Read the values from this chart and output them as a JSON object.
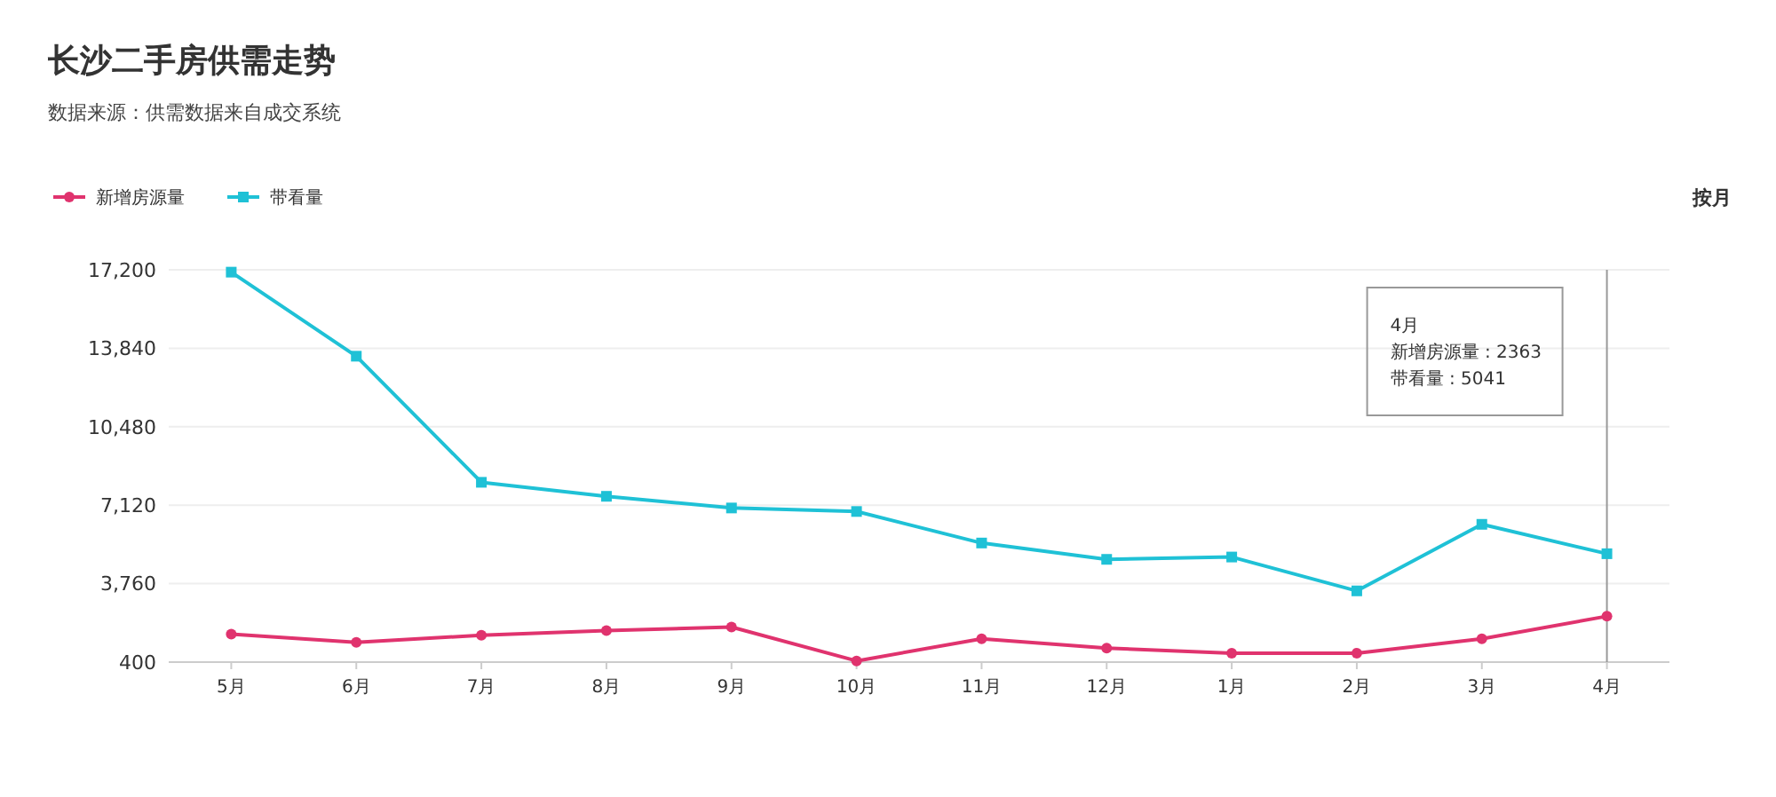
{
  "chart_data": {
    "type": "line",
    "title": "长沙二手房供需走势",
    "subtitle": "数据来源：供需数据来自成交系统",
    "categories": [
      "5月",
      "6月",
      "7月",
      "8月",
      "9月",
      "10月",
      "11月",
      "12月",
      "1月",
      "2月",
      "3月",
      "4月"
    ],
    "series": [
      {
        "name": "新增房源量",
        "color": "#e0336e",
        "marker": "circle",
        "values": [
          1600,
          1250,
          1550,
          1750,
          1900,
          450,
          1400,
          1000,
          780,
          780,
          1400,
          2363
        ]
      },
      {
        "name": "带看量",
        "color": "#1fc1d6",
        "marker": "square",
        "values": [
          17100,
          13500,
          8100,
          7500,
          7000,
          6850,
          5500,
          4800,
          4900,
          3450,
          6300,
          5041
        ]
      }
    ],
    "ylim": [
      400,
      17200
    ],
    "yticks": [
      {
        "value": 400,
        "label": "400"
      },
      {
        "value": 3760,
        "label": "3,760"
      },
      {
        "value": 7120,
        "label": "7,120"
      },
      {
        "value": 10480,
        "label": "10,480"
      },
      {
        "value": 13840,
        "label": "13,840"
      },
      {
        "value": 17200,
        "label": "17,200"
      }
    ],
    "grid": "y",
    "legend": "top left",
    "line_style": "solid",
    "ref_lines": [
      {
        "axis": "x",
        "value": "4月",
        "color": "#999999"
      }
    ],
    "annotations": [
      "4月",
      "新增房源量 : 2363",
      "带看量 : 5041",
      "按月"
    ]
  }
}
